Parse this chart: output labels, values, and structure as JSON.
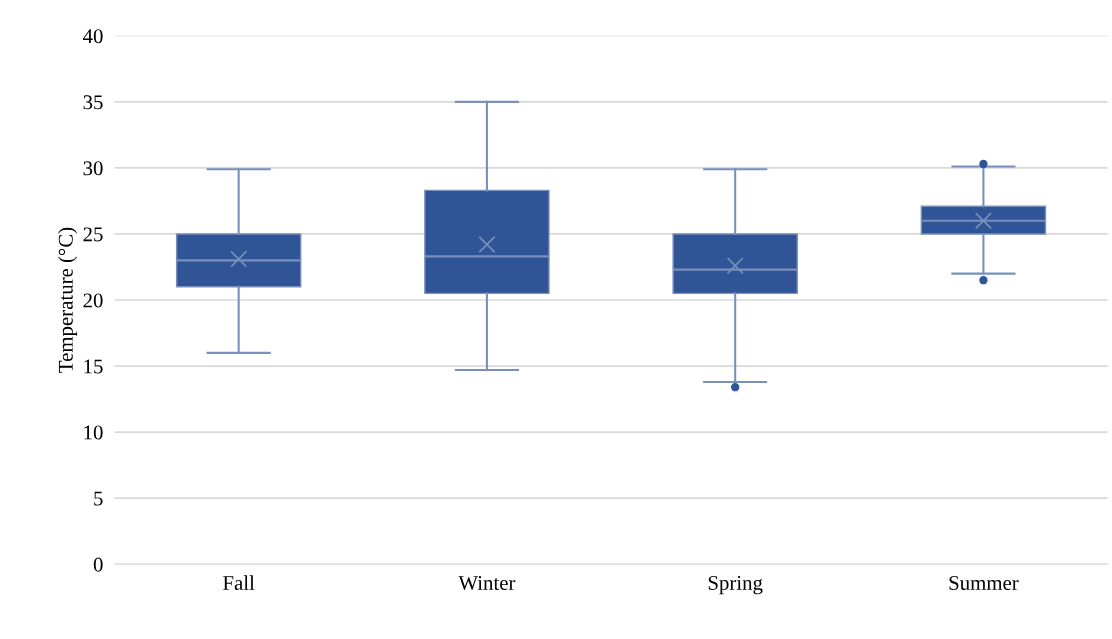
{
  "chart_data": {
    "type": "box",
    "ylabel": "Temperature (°C)",
    "categories": [
      "Fall",
      "Winter",
      "Spring",
      "Summer"
    ],
    "series": [
      {
        "color": "#2f5597",
        "boxes": [
          {
            "low": 16.0,
            "q1": 21.0,
            "median": 23.0,
            "q3": 25.0,
            "high": 29.9,
            "mean": 23.1
          },
          {
            "low": 14.7,
            "q1": 20.5,
            "median": 23.3,
            "q3": 28.3,
            "high": 35.0,
            "mean": 24.2
          },
          {
            "low": 13.8,
            "q1": 20.5,
            "median": 22.3,
            "q3": 25.0,
            "high": 29.9,
            "mean": 22.6,
            "outliers": [
              13.4
            ]
          },
          {
            "low": 22.0,
            "q1": 25.0,
            "median": 26.0,
            "q3": 27.1,
            "high": 30.1,
            "mean": 26.0,
            "outliers": [
              30.3,
              21.5
            ]
          }
        ]
      }
    ],
    "ylim": [
      0,
      40
    ],
    "yticks": [
      0,
      5,
      10,
      15,
      20,
      25,
      30,
      35,
      40
    ],
    "grid": "y",
    "legend": false
  }
}
